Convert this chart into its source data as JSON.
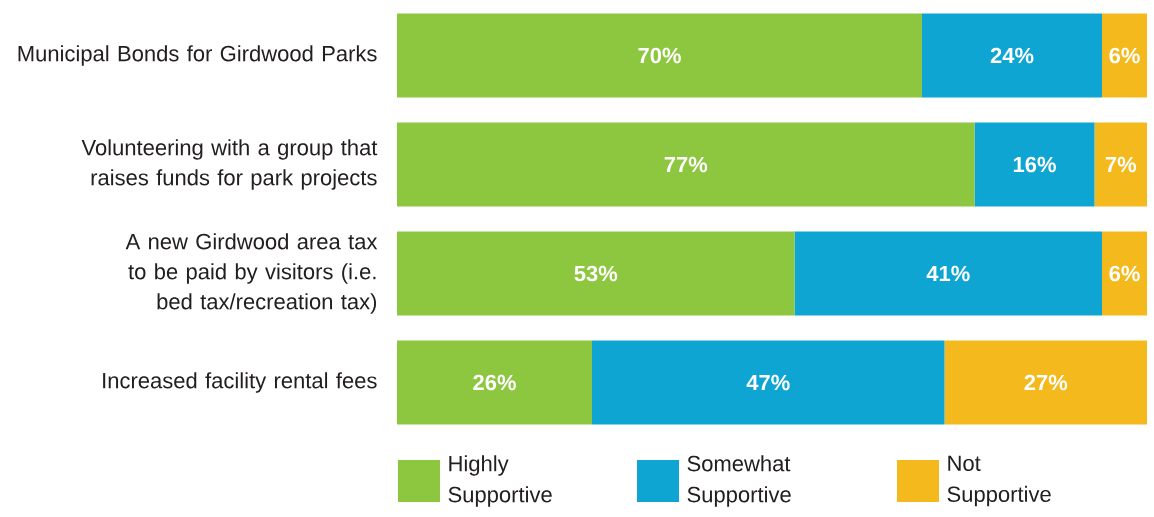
{
  "chart_data": {
    "type": "bar",
    "orientation": "horizontal",
    "stacked": true,
    "xlim": [
      0,
      100
    ],
    "tick_labels": "y",
    "legend": "bottom",
    "categories": [
      "Municipal Bonds for Girdwood Parks",
      "Volunteering with a group that raises funds for park projects",
      "A new Girdwood area tax to be paid by visitors (i.e. bed tax/recreation tax)",
      "Increased facility rental fees"
    ],
    "series": [
      {
        "name": "Highly Supportive",
        "color": "#8dc63f",
        "values": [
          70,
          77,
          53,
          26
        ],
        "value_labels": [
          "70%",
          "77%",
          "53%",
          "26%"
        ]
      },
      {
        "name": "Somewhat Supportive",
        "color": "#0fa5d2",
        "values": [
          24,
          16,
          41,
          47
        ],
        "value_labels": [
          "24%",
          "16%",
          "41%",
          "47%"
        ]
      },
      {
        "name": "Not Supportive",
        "color": "#f4b91c",
        "values": [
          6,
          7,
          6,
          27
        ],
        "value_labels": [
          "6%",
          "7%",
          "6%",
          "27%"
        ]
      }
    ]
  }
}
